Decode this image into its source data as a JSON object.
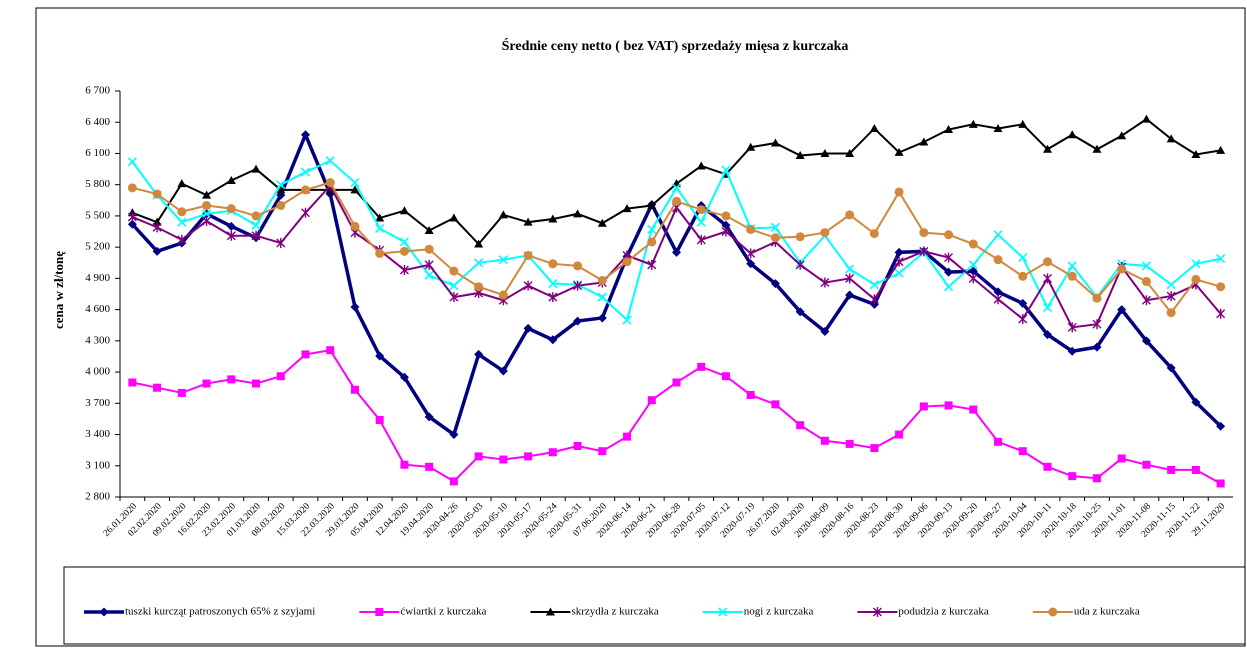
{
  "chart_data": {
    "type": "line",
    "title": "Średnie ceny netto ( bez VAT) sprzedaży mięsa z kurczaka",
    "y_label": "cena w zł/tonę",
    "categories": [
      "26.01.2020",
      "02.02.2020",
      "09.02.2020",
      "16.02.2020",
      "23.02.2020",
      "01.03.2020",
      "08.03.2020",
      "15.03.2020",
      "22.03.2020",
      "29.03.2020",
      "05.04.2020",
      "12.04.2020",
      "19.04.2020",
      "2020-04-26",
      "2020-05-03",
      "2020-05-10",
      "2020-05-17",
      "2020-05-24",
      "2020-05-31",
      "07.06.2020",
      "2020-06-14",
      "2020-06-21",
      "2020-06-28",
      "2020-07-05",
      "2020-07-12",
      "2020-07-19",
      "26.07.2020",
      "02.08.2020",
      "2020-08-09",
      "2020-08-16",
      "2020-08-23",
      "2020-08-30",
      "2020-09-06",
      "2020-09-13",
      "2020-09-20",
      "2020-09-27",
      "2020-10-04",
      "2020-10-11",
      "2020-10-18",
      "2020-10-25",
      "2020-11-01",
      "2020-11-08",
      "2020-11-15",
      "2020-11-22",
      "29.11.2020"
    ],
    "ylim": [
      2800,
      6700
    ],
    "yticks": [
      {
        "value": 2800,
        "label": "2 800"
      },
      {
        "value": 3100,
        "label": "3 100"
      },
      {
        "value": 3400,
        "label": "3 400"
      },
      {
        "value": 3700,
        "label": "3 700"
      },
      {
        "value": 4000,
        "label": "4 000"
      },
      {
        "value": 4300,
        "label": "4 300"
      },
      {
        "value": 4600,
        "label": "4 600"
      },
      {
        "value": 4900,
        "label": "4 900"
      },
      {
        "value": 5200,
        "label": "5 200"
      },
      {
        "value": 5500,
        "label": "5 500"
      },
      {
        "value": 5800,
        "label": "5 800"
      },
      {
        "value": 6100,
        "label": "6 100"
      },
      {
        "value": 6400,
        "label": "6 400"
      },
      {
        "value": 6700,
        "label": "6 700"
      }
    ],
    "grid": false,
    "legend": "bottom",
    "series": [
      {
        "name": "tuszki kurcząt patroszonych 65% z szyjami",
        "color": "#000080",
        "marker": "diamond",
        "values": [
          5420,
          5160,
          5240,
          5520,
          5400,
          5290,
          5700,
          6280,
          5710,
          4625,
          4155,
          3950,
          3570,
          3400,
          4170,
          4010,
          4420,
          4310,
          4490,
          4520,
          5110,
          5610,
          5150,
          5600,
          5410,
          5040,
          4850,
          4580,
          4390,
          4740,
          4650,
          5150,
          5160,
          4960,
          4970,
          4770,
          4660,
          4360,
          4200,
          4240,
          4600,
          4300,
          4040,
          3710,
          3480
        ]
      },
      {
        "name": "ćwiartki z kurczaka",
        "color": "#ff00ff",
        "marker": "square",
        "values": [
          3900,
          3850,
          3800,
          3890,
          3930,
          3890,
          3960,
          4170,
          4210,
          3830,
          3540,
          3110,
          3090,
          2950,
          3190,
          3160,
          3190,
          3230,
          3290,
          3240,
          3380,
          3730,
          3900,
          4050,
          3960,
          3780,
          3690,
          3490,
          3340,
          3310,
          3270,
          3400,
          3670,
          3680,
          3640,
          3330,
          3240,
          3090,
          3000,
          2980,
          3170,
          3110,
          3060,
          3060,
          2930
        ]
      },
      {
        "name": "skrzydła z kurczaka",
        "color": "#000000",
        "marker": "triangle",
        "values": [
          5530,
          5440,
          5810,
          5700,
          5840,
          5950,
          5750,
          5750,
          5750,
          5750,
          5480,
          5550,
          5360,
          5480,
          5230,
          5510,
          5440,
          5470,
          5520,
          5430,
          5570,
          5600,
          5810,
          5980,
          5900,
          6160,
          6200,
          6080,
          6100,
          6100,
          6340,
          6110,
          6210,
          6330,
          6380,
          6340,
          6380,
          6140,
          6280,
          6140,
          6270,
          6430,
          6240,
          6090,
          6130
        ]
      },
      {
        "name": "nogi z kurczaka",
        "color": "#00ffff",
        "marker": "x",
        "values": [
          6020,
          5700,
          5440,
          5520,
          5550,
          5410,
          5800,
          5920,
          6030,
          5820,
          5380,
          5250,
          4930,
          4830,
          5050,
          5080,
          5120,
          4850,
          4840,
          4720,
          4500,
          5370,
          5770,
          5440,
          5940,
          5380,
          5390,
          5050,
          5310,
          4990,
          4840,
          4950,
          5150,
          4820,
          5030,
          5320,
          5100,
          4620,
          5020,
          4720,
          5040,
          5020,
          4840,
          5040,
          5090
        ]
      },
      {
        "name": "podudzia z kurczaka",
        "color": "#800080",
        "marker": "star",
        "values": [
          5490,
          5390,
          5270,
          5450,
          5310,
          5310,
          5240,
          5530,
          5790,
          5340,
          5170,
          4980,
          5030,
          4720,
          4760,
          4690,
          4830,
          4720,
          4830,
          4860,
          5120,
          5030,
          5580,
          5270,
          5350,
          5140,
          5250,
          5030,
          4860,
          4900,
          4700,
          5060,
          5160,
          5100,
          4900,
          4700,
          4510,
          4900,
          4430,
          4460,
          5010,
          4690,
          4730,
          4840,
          4560
        ]
      },
      {
        "name": "uda z kurczaka",
        "color": "#d2883c",
        "marker": "circle",
        "values": [
          5770,
          5710,
          5540,
          5600,
          5570,
          5500,
          5600,
          5750,
          5820,
          5400,
          5140,
          5160,
          5180,
          4970,
          4820,
          4740,
          5120,
          5040,
          5020,
          4880,
          5060,
          5250,
          5640,
          5560,
          5500,
          5370,
          5290,
          5300,
          5340,
          5510,
          5330,
          5730,
          5340,
          5320,
          5230,
          5080,
          4920,
          5060,
          4920,
          4710,
          4990,
          4870,
          4570,
          4890,
          4820
        ]
      }
    ]
  }
}
